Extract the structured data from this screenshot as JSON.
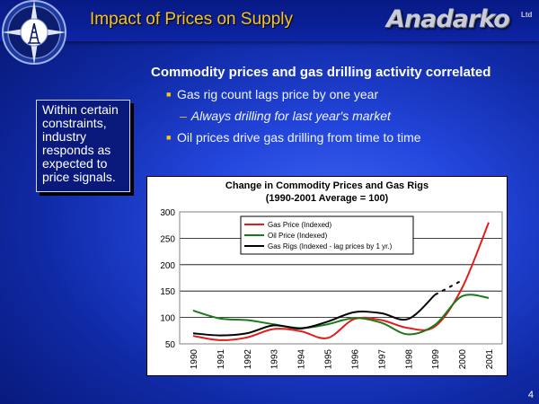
{
  "slide": {
    "title": "Impact of Prices on Supply",
    "logo_text": "Anadarko",
    "logo_suffix": "Ltd",
    "subtitle": "Commodity prices and gas drilling activity correlated",
    "bullets": [
      "Gas rig count lags price by one year",
      "Always drilling for last year's market",
      "Oil prices drive gas drilling from time to time"
    ],
    "callout": [
      "Within certain",
      "constraints,",
      "industry",
      "responds as",
      "expected to",
      "price signals."
    ],
    "slide_number": "4",
    "accent_color": "#f7c31c",
    "background_color": "#2346dc",
    "icons": {
      "compass": "compass-derrick-icon"
    }
  },
  "chart_data": {
    "type": "line",
    "title": "Change in Commodity Prices and Gas Rigs",
    "subtitle": "(1990-2001 Average = 100)",
    "xlabel": "",
    "ylabel": "",
    "ylim": [
      50,
      300
    ],
    "yticks": [
      50,
      100,
      150,
      200,
      250,
      300
    ],
    "categories": [
      "1990",
      "1991",
      "1992",
      "1993",
      "1994",
      "1995",
      "1996",
      "1997",
      "1998",
      "1999",
      "2000",
      "2001"
    ],
    "grid": true,
    "legend": "top-left",
    "series": [
      {
        "name": "Gas Price (Indexed)",
        "color": "#e41a1a",
        "values": [
          65,
          57,
          62,
          78,
          74,
          61,
          97,
          95,
          80,
          83,
          155,
          280
        ]
      },
      {
        "name": "Oil Price (Indexed)",
        "color": "#1a7a1a",
        "values": [
          113,
          98,
          95,
          87,
          80,
          87,
          99,
          90,
          68,
          86,
          140,
          137
        ]
      },
      {
        "name": "Gas Rigs (Indexed - lag prices by 1 yr.)",
        "color": "#000000",
        "values": [
          70,
          66,
          70,
          85,
          79,
          92,
          110,
          108,
          97,
          143,
          170,
          null
        ],
        "dashed_from_index": 9
      }
    ]
  }
}
